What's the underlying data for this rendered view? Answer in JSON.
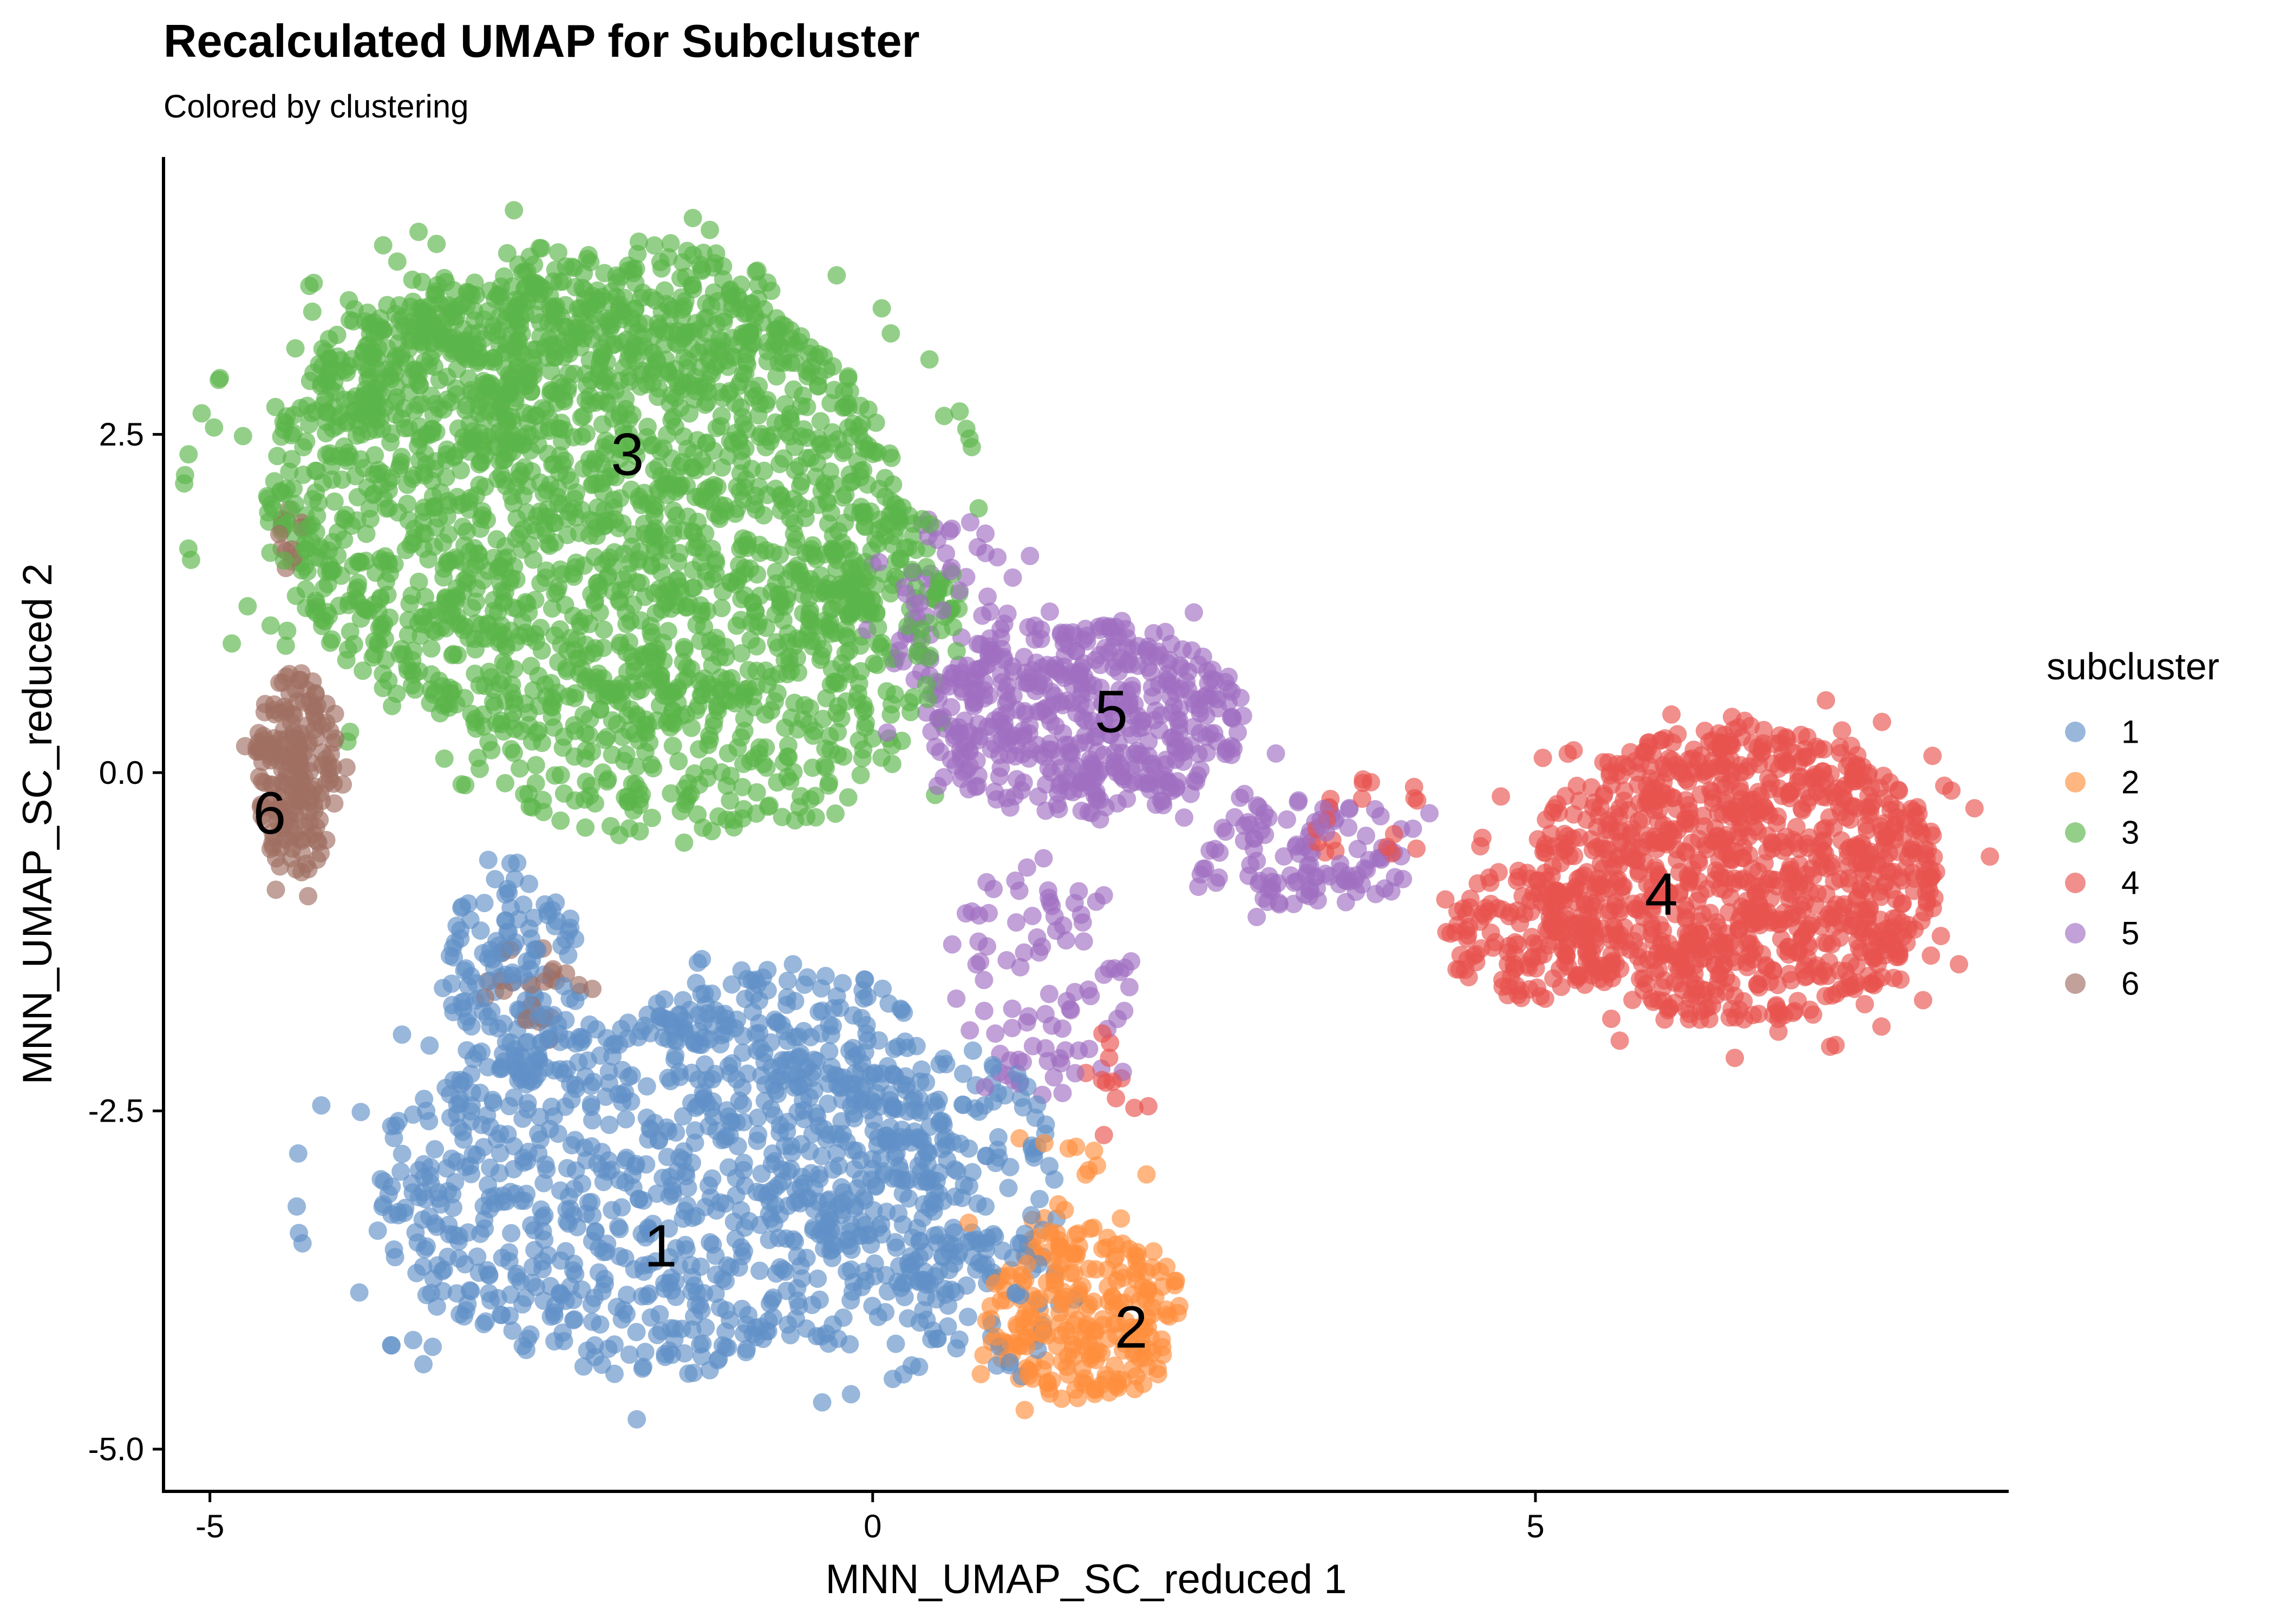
{
  "chart_data": {
    "type": "scatter",
    "title": "Recalculated UMAP for Subcluster",
    "subtitle": "Colored by clustering",
    "xlabel": "MNN_UMAP_SC_reduced 1",
    "ylabel": "MNN_UMAP_SC_reduced 2",
    "xlim": [
      -5.35,
      8.55
    ],
    "ylim": [
      -5.3,
      4.55
    ],
    "x_ticks": [
      -5,
      0,
      5
    ],
    "x_tick_labels": [
      "-5",
      "0",
      "5"
    ],
    "y_ticks": [
      -5.0,
      -2.5,
      0.0,
      2.5
    ],
    "y_tick_labels": [
      "-5.0",
      "-2.5",
      "0.0",
      "2.5"
    ],
    "grid": false,
    "legend": {
      "title": "subcluster",
      "position": "right",
      "entries": [
        "1",
        "2",
        "3",
        "4",
        "5",
        "6"
      ]
    },
    "series": [
      {
        "name": "1",
        "color": "#6190C8",
        "label_position": [
          -1.6,
          -3.5
        ],
        "regions": [
          {
            "shape": "ellipse",
            "cx": -1.5,
            "cy": -3.1,
            "rx": 2.3,
            "ry": 1.35,
            "count": 900
          },
          {
            "shape": "ellipse",
            "cx": -2.7,
            "cy": -1.5,
            "rx": 0.5,
            "ry": 0.85,
            "count": 140
          },
          {
            "shape": "ellipse",
            "cx": -0.6,
            "cy": -1.9,
            "rx": 1.0,
            "ry": 0.5,
            "count": 120
          },
          {
            "shape": "ellipse",
            "cx": 0.4,
            "cy": -2.9,
            "rx": 1.1,
            "ry": 0.9,
            "count": 160
          },
          {
            "shape": "ellipse",
            "cx": 0.8,
            "cy": -3.9,
            "rx": 0.6,
            "ry": 0.55,
            "count": 60
          }
        ]
      },
      {
        "name": "2",
        "color": "#FF8F3D",
        "label_position": [
          1.95,
          -4.1
        ],
        "regions": [
          {
            "shape": "ellipse",
            "cx": 1.6,
            "cy": -4.0,
            "rx": 0.75,
            "ry": 0.65,
            "count": 260
          },
          {
            "shape": "ellipse",
            "cx": 1.4,
            "cy": -3.0,
            "rx": 0.6,
            "ry": 0.6,
            "count": 15
          }
        ]
      },
      {
        "name": "3",
        "color": "#5AB54A",
        "label_position": [
          -1.85,
          2.35
        ],
        "regions": [
          {
            "shape": "ellipse",
            "cx": -2.2,
            "cy": 2.0,
            "rx": 2.4,
            "ry": 1.75,
            "count": 1700
          },
          {
            "shape": "ellipse",
            "cx": -3.3,
            "cy": 2.9,
            "rx": 1.0,
            "ry": 0.6,
            "count": 200
          },
          {
            "shape": "ellipse",
            "cx": -2.0,
            "cy": 3.4,
            "rx": 1.4,
            "ry": 0.55,
            "count": 200
          },
          {
            "shape": "ellipse",
            "cx": -1.4,
            "cy": 0.1,
            "rx": 1.6,
            "ry": 0.6,
            "count": 220
          },
          {
            "shape": "ellipse",
            "cx": 0.1,
            "cy": 1.2,
            "rx": 0.6,
            "ry": 0.8,
            "count": 150
          }
        ]
      },
      {
        "name": "4",
        "color": "#E8534F",
        "label_position": [
          5.95,
          -0.9
        ],
        "regions": [
          {
            "shape": "ellipse",
            "cx": 6.5,
            "cy": -0.75,
            "rx": 1.55,
            "ry": 1.1,
            "count": 1100
          },
          {
            "shape": "ellipse",
            "cx": 4.9,
            "cy": -1.2,
            "rx": 0.6,
            "ry": 0.5,
            "count": 120
          },
          {
            "shape": "ellipse",
            "cx": 3.7,
            "cy": -0.4,
            "rx": 0.6,
            "ry": 0.4,
            "count": 20
          },
          {
            "shape": "ellipse",
            "cx": 1.8,
            "cy": -2.2,
            "rx": 0.25,
            "ry": 0.5,
            "count": 12
          }
        ]
      },
      {
        "name": "5",
        "color": "#9F6FC2",
        "label_position": [
          1.8,
          0.45
        ],
        "regions": [
          {
            "shape": "ellipse",
            "cx": 1.6,
            "cy": 0.4,
            "rx": 1.2,
            "ry": 0.75,
            "count": 500
          },
          {
            "shape": "ellipse",
            "cx": 3.3,
            "cy": -0.6,
            "rx": 0.9,
            "ry": 0.4,
            "count": 120
          },
          {
            "shape": "ellipse",
            "cx": 1.3,
            "cy": -1.5,
            "rx": 0.7,
            "ry": 0.9,
            "count": 90
          },
          {
            "shape": "ellipse",
            "cx": 0.5,
            "cy": 1.3,
            "rx": 0.6,
            "ry": 0.6,
            "count": 60
          }
        ]
      },
      {
        "name": "6",
        "color": "#A06E63",
        "label_position": [
          -4.55,
          -0.3
        ],
        "regions": [
          {
            "shape": "ellipse",
            "cx": -4.35,
            "cy": 0.0,
            "rx": 0.32,
            "ry": 0.75,
            "count": 200
          },
          {
            "shape": "ellipse",
            "cx": -2.6,
            "cy": -1.5,
            "rx": 0.4,
            "ry": 0.4,
            "count": 25
          },
          {
            "shape": "ellipse",
            "cx": -4.4,
            "cy": 1.7,
            "rx": 0.12,
            "ry": 0.25,
            "count": 12
          }
        ]
      }
    ],
    "point_opacity": 0.65
  }
}
